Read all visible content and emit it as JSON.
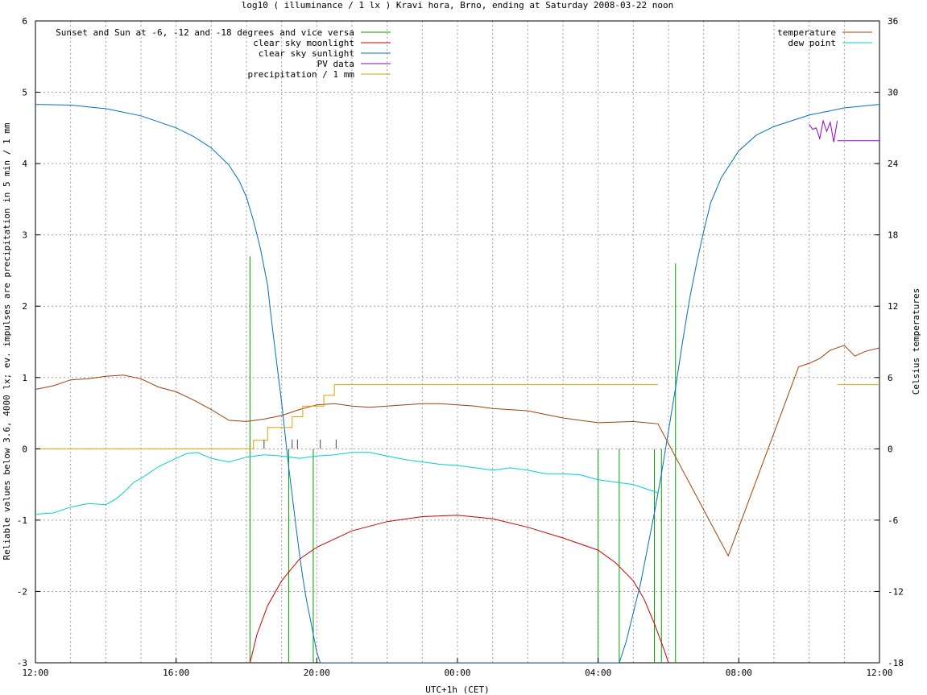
{
  "chart_data": {
    "type": "line",
    "title": "log10 ( illuminance / 1 lx ) Kravi hora, Brno, ending at Saturday 2008-03-22 noon",
    "xlabel": "UTC+1h (CET)",
    "ylabel": "Reliable values below 3.6, 4000 lx; ev. impulses are precipitation in 5 min / 1 mm",
    "y2label": "Celsius temperatures",
    "xlim": [
      0,
      24
    ],
    "ylim": [
      -3,
      6
    ],
    "y2lim": [
      -18,
      36
    ],
    "x_ticks": [
      {
        "x": 0,
        "label": "12:00"
      },
      {
        "x": 4,
        "label": "16:00"
      },
      {
        "x": 8,
        "label": "20:00"
      },
      {
        "x": 12,
        "label": "00:00"
      },
      {
        "x": 16,
        "label": "04:00"
      },
      {
        "x": 20,
        "label": "08:00"
      },
      {
        "x": 24,
        "label": "12:00"
      }
    ],
    "y_ticks": [
      "-3",
      "-2",
      "-1",
      "0",
      "1",
      "2",
      "3",
      "4",
      "5",
      "6"
    ],
    "y2_ticks": [
      "-18",
      "-12",
      "-6",
      "0",
      "6",
      "12",
      "18",
      "24",
      "30",
      "36"
    ],
    "grid": true,
    "legend_left": [
      {
        "name": "Sunset and Sun at -6, -12 and -18 degrees and vice versa",
        "color": "#00a000"
      },
      {
        "name": "clear sky moonlight",
        "color": "#cc0000"
      },
      {
        "name": "clear sky sunlight",
        "color": "#0070c0"
      },
      {
        "name": "PV data",
        "color": "#9400d3"
      },
      {
        "name": "precipitation / 1 mm",
        "color": "#e0a000"
      }
    ],
    "legend_right": [
      {
        "name": "temperature",
        "color": "#a0400a"
      },
      {
        "name": "dew point",
        "color": "#00d0d0"
      }
    ],
    "series": [
      {
        "name": "clear sky sunlight",
        "color": "#0070c0",
        "axis": "y",
        "points": [
          [
            0,
            4.83
          ],
          [
            1,
            4.82
          ],
          [
            2,
            4.77
          ],
          [
            3,
            4.67
          ],
          [
            4,
            4.5
          ],
          [
            4.5,
            4.38
          ],
          [
            5,
            4.22
          ],
          [
            5.5,
            3.98
          ],
          [
            5.8,
            3.75
          ],
          [
            6,
            3.53
          ],
          [
            6.2,
            3.2
          ],
          [
            6.4,
            2.8
          ],
          [
            6.5,
            2.55
          ],
          [
            6.6,
            2.3
          ],
          [
            6.7,
            1.85
          ],
          [
            6.8,
            1.45
          ],
          [
            6.9,
            1.05
          ],
          [
            7,
            0.65
          ],
          [
            7.1,
            0.2
          ],
          [
            7.2,
            -0.25
          ],
          [
            7.3,
            -0.65
          ],
          [
            7.4,
            -1.05
          ],
          [
            7.5,
            -1.45
          ],
          [
            7.6,
            -1.8
          ],
          [
            7.7,
            -2.1
          ],
          [
            7.8,
            -2.35
          ],
          [
            7.9,
            -2.6
          ],
          [
            8,
            -2.85
          ],
          [
            8.1,
            -3
          ],
          [
            16.6,
            -3
          ],
          [
            16.8,
            -2.7
          ],
          [
            17,
            -2.3
          ],
          [
            17.2,
            -1.9
          ],
          [
            17.4,
            -1.4
          ],
          [
            17.6,
            -0.9
          ],
          [
            17.8,
            -0.35
          ],
          [
            18,
            0.25
          ],
          [
            18.2,
            0.85
          ],
          [
            18.4,
            1.5
          ],
          [
            18.6,
            2.1
          ],
          [
            18.8,
            2.6
          ],
          [
            19,
            3.05
          ],
          [
            19.2,
            3.45
          ],
          [
            19.5,
            3.8
          ],
          [
            20,
            4.18
          ],
          [
            20.5,
            4.4
          ],
          [
            21,
            4.52
          ],
          [
            22,
            4.68
          ],
          [
            23,
            4.78
          ],
          [
            24,
            4.83
          ]
        ]
      },
      {
        "name": "clear sky moonlight",
        "color": "#cc0000",
        "axis": "y",
        "points": [
          [
            6.1,
            -3
          ],
          [
            6.3,
            -2.6
          ],
          [
            6.6,
            -2.2
          ],
          [
            7,
            -1.85
          ],
          [
            7.5,
            -1.55
          ],
          [
            8,
            -1.38
          ],
          [
            9,
            -1.15
          ],
          [
            10,
            -1.02
          ],
          [
            11,
            -0.95
          ],
          [
            12,
            -0.93
          ],
          [
            13,
            -0.98
          ],
          [
            14,
            -1.1
          ],
          [
            15,
            -1.25
          ],
          [
            16,
            -1.42
          ],
          [
            16.5,
            -1.6
          ],
          [
            17,
            -1.85
          ],
          [
            17.3,
            -2.1
          ],
          [
            17.6,
            -2.45
          ],
          [
            17.9,
            -2.85
          ],
          [
            18,
            -3
          ]
        ]
      },
      {
        "name": "temperature",
        "color": "#a0400a",
        "axis": "y2",
        "points": [
          [
            0,
            5.0
          ],
          [
            0.5,
            5.3
          ],
          [
            1,
            5.8
          ],
          [
            1.5,
            5.9
          ],
          [
            2,
            6.1
          ],
          [
            2.5,
            6.2
          ],
          [
            3,
            5.9
          ],
          [
            3.5,
            5.2
          ],
          [
            4,
            4.8
          ],
          [
            4.5,
            4.1
          ],
          [
            5,
            3.3
          ],
          [
            5.5,
            2.4
          ],
          [
            6,
            2.3
          ],
          [
            6.5,
            2.5
          ],
          [
            7,
            2.8
          ],
          [
            7.5,
            3.3
          ],
          [
            8,
            3.7
          ],
          [
            8.5,
            3.8
          ],
          [
            9,
            3.6
          ],
          [
            9.5,
            3.5
          ],
          [
            10,
            3.6
          ],
          [
            10.5,
            3.7
          ],
          [
            11,
            3.8
          ],
          [
            11.5,
            3.8
          ],
          [
            12,
            3.7
          ],
          [
            12.5,
            3.6
          ],
          [
            13,
            3.4
          ],
          [
            14,
            3.2
          ],
          [
            15,
            2.6
          ],
          [
            16,
            2.2
          ],
          [
            17,
            2.3
          ],
          [
            17.7,
            2.1
          ],
          [
            19.7,
            -9
          ],
          [
            21.7,
            6.9
          ],
          [
            22,
            7.2
          ],
          [
            22.3,
            7.6
          ],
          [
            22.6,
            8.3
          ],
          [
            23,
            8.7
          ],
          [
            23.3,
            7.8
          ],
          [
            23.6,
            8.2
          ],
          [
            24,
            8.5
          ]
        ]
      },
      {
        "name": "dew point",
        "color": "#00d0d0",
        "axis": "y2",
        "points": [
          [
            0,
            -5.5
          ],
          [
            0.5,
            -5.4
          ],
          [
            1,
            -4.9
          ],
          [
            1.5,
            -4.6
          ],
          [
            2,
            -4.7
          ],
          [
            2.3,
            -4.2
          ],
          [
            2.5,
            -3.7
          ],
          [
            2.8,
            -2.8
          ],
          [
            3,
            -2.5
          ],
          [
            3.5,
            -1.5
          ],
          [
            4,
            -0.8
          ],
          [
            4.3,
            -0.4
          ],
          [
            4.6,
            -0.3
          ],
          [
            5,
            -0.8
          ],
          [
            5.5,
            -1.1
          ],
          [
            6,
            -0.7
          ],
          [
            6.5,
            -0.5
          ],
          [
            7,
            -0.6
          ],
          [
            7.5,
            -0.8
          ],
          [
            8,
            -0.6
          ],
          [
            8.5,
            -0.5
          ],
          [
            9,
            -0.3
          ],
          [
            9.5,
            -0.3
          ],
          [
            10,
            -0.6
          ],
          [
            10.5,
            -0.9
          ],
          [
            11,
            -1.1
          ],
          [
            11.5,
            -1.3
          ],
          [
            12,
            -1.4
          ],
          [
            12.5,
            -1.6
          ],
          [
            13,
            -1.8
          ],
          [
            13.5,
            -1.6
          ],
          [
            14,
            -1.8
          ],
          [
            14.5,
            -2.1
          ],
          [
            15,
            -2.1
          ],
          [
            15.5,
            -2.2
          ],
          [
            16,
            -2.6
          ],
          [
            16.5,
            -2.8
          ],
          [
            17,
            -3.0
          ],
          [
            17.5,
            -3.5
          ],
          [
            17.7,
            -3.7
          ]
        ]
      },
      {
        "name": "precipitation / 1 mm",
        "color": "#e0a000",
        "axis": "y",
        "points": [
          [
            0,
            0
          ],
          [
            6.2,
            0
          ],
          [
            6.2,
            0.12
          ],
          [
            6.6,
            0.12
          ],
          [
            6.6,
            0.3
          ],
          [
            7.3,
            0.3
          ],
          [
            7.3,
            0.45
          ],
          [
            7.6,
            0.45
          ],
          [
            7.6,
            0.6
          ],
          [
            8.2,
            0.6
          ],
          [
            8.2,
            0.75
          ],
          [
            8.5,
            0.75
          ],
          [
            8.5,
            0.9
          ],
          [
            17.7,
            0.9
          ]
        ]
      },
      {
        "name": "PV data",
        "color": "#9400d3",
        "axis": "y",
        "points": [
          [
            22.0,
            4.55
          ],
          [
            22.1,
            4.48
          ],
          [
            22.2,
            4.5
          ],
          [
            22.3,
            4.35
          ],
          [
            22.4,
            4.6
          ],
          [
            22.5,
            4.45
          ],
          [
            22.6,
            4.58
          ],
          [
            22.7,
            4.3
          ],
          [
            22.8,
            4.6
          ]
        ]
      }
    ]
  }
}
